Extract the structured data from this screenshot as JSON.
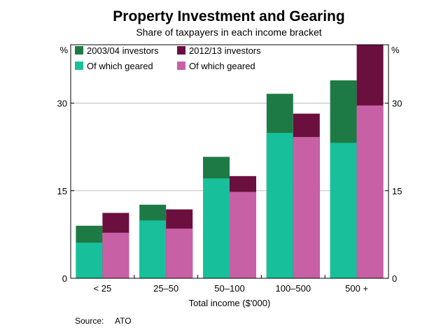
{
  "chart_data": {
    "type": "bar",
    "title": "Property Investment and Gearing",
    "subtitle": "Share of taxpayers in each income bracket",
    "xlabel": "Total income ($'000)",
    "ylabel_left": "%",
    "ylabel_right": "%",
    "ylim": [
      0,
      40
    ],
    "yticks": [
      0,
      15,
      30
    ],
    "categories": [
      "< 25",
      "25–50",
      "50–100",
      "100–500",
      "500 +"
    ],
    "series": [
      {
        "name": "2003/04 investors",
        "color": "#1e7a45",
        "values": [
          9.0,
          12.6,
          20.8,
          31.6,
          33.9
        ]
      },
      {
        "name": "Of which geared",
        "color": "#17c09b",
        "values": [
          6.1,
          9.9,
          17.1,
          24.9,
          23.2
        ]
      },
      {
        "name": "2012/13 investors",
        "color": "#6b0f3f",
        "values": [
          11.2,
          11.8,
          17.5,
          28.2,
          40.0
        ]
      },
      {
        "name": "Of which geared",
        "color": "#c860a6",
        "values": [
          7.8,
          8.5,
          14.8,
          24.2,
          29.6
        ]
      }
    ],
    "grid": true,
    "legend_position": "top-left",
    "source_label": "Source:",
    "source": "ATO"
  }
}
